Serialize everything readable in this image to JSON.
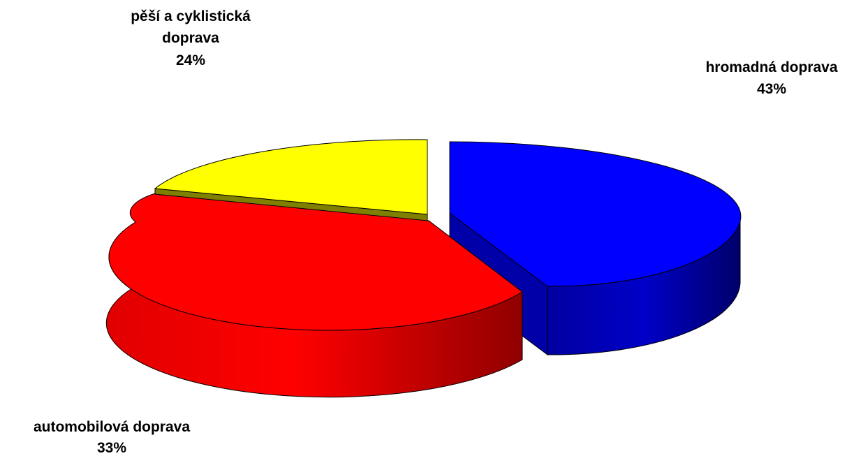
{
  "chart_data": {
    "type": "pie",
    "style": "3d-exploded",
    "title": "",
    "legend": "none",
    "slices": [
      {
        "name": "hromadná doprava",
        "value": 43,
        "value_label": "43%",
        "color": "#0000ff",
        "side_color": "#000080"
      },
      {
        "name": "automobilová doprava",
        "value": 33,
        "value_label": "33%",
        "color": "#ff0000",
        "side_color": "#900000"
      },
      {
        "name": "pěší a cyklistická doprava",
        "name_lines": [
          "pěší a cyklistická",
          "doprava"
        ],
        "value": 24,
        "value_label": "24%",
        "color": "#ffff00",
        "side_color": "#808000"
      }
    ]
  }
}
